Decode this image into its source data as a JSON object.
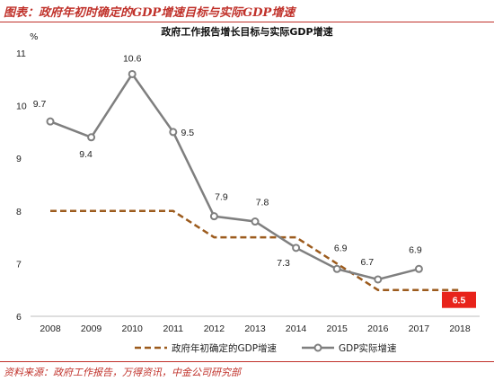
{
  "figure": {
    "caption": "图表：政府年初时确定的GDP增速目标与实际GDP增速",
    "source": "资料来源：政府工作报告，万得资讯，中金公司研究部"
  },
  "chart_data": {
    "type": "line",
    "title": "政府工作报告增长目标与实际GDP增速",
    "ylabel": "%",
    "xlabel": "",
    "categories": [
      "2008",
      "2009",
      "2010",
      "2011",
      "2012",
      "2013",
      "2014",
      "2015",
      "2016",
      "2017",
      "2018"
    ],
    "ylim": [
      6,
      11
    ],
    "yticks": [
      6,
      7,
      8,
      9,
      10,
      11
    ],
    "grid": false,
    "legend_position": "bottom",
    "series": [
      {
        "name": "政府年初确定的GDP增速",
        "style": "dashed-step",
        "color": "#9c5b1d",
        "values": [
          8,
          8,
          8,
          8,
          7.5,
          7.5,
          7.5,
          7,
          6.5,
          6.5,
          6.5
        ]
      },
      {
        "name": "GDP实际增速",
        "style": "solid-markers",
        "color": "#7f7f7f",
        "values": [
          9.7,
          9.4,
          10.6,
          9.5,
          7.9,
          7.8,
          7.3,
          6.9,
          6.7,
          6.9,
          null
        ],
        "labels": [
          "9.7",
          "9.4",
          "10.6",
          "9.5",
          "7.9",
          "7.8",
          "7.3",
          "6.9",
          "6.7",
          "6.9",
          null
        ]
      }
    ],
    "annotations": [
      {
        "category": "2018",
        "value": 6.5,
        "text": "6.5",
        "box_color": "#e8231b",
        "text_color": "#ffffff"
      }
    ]
  }
}
